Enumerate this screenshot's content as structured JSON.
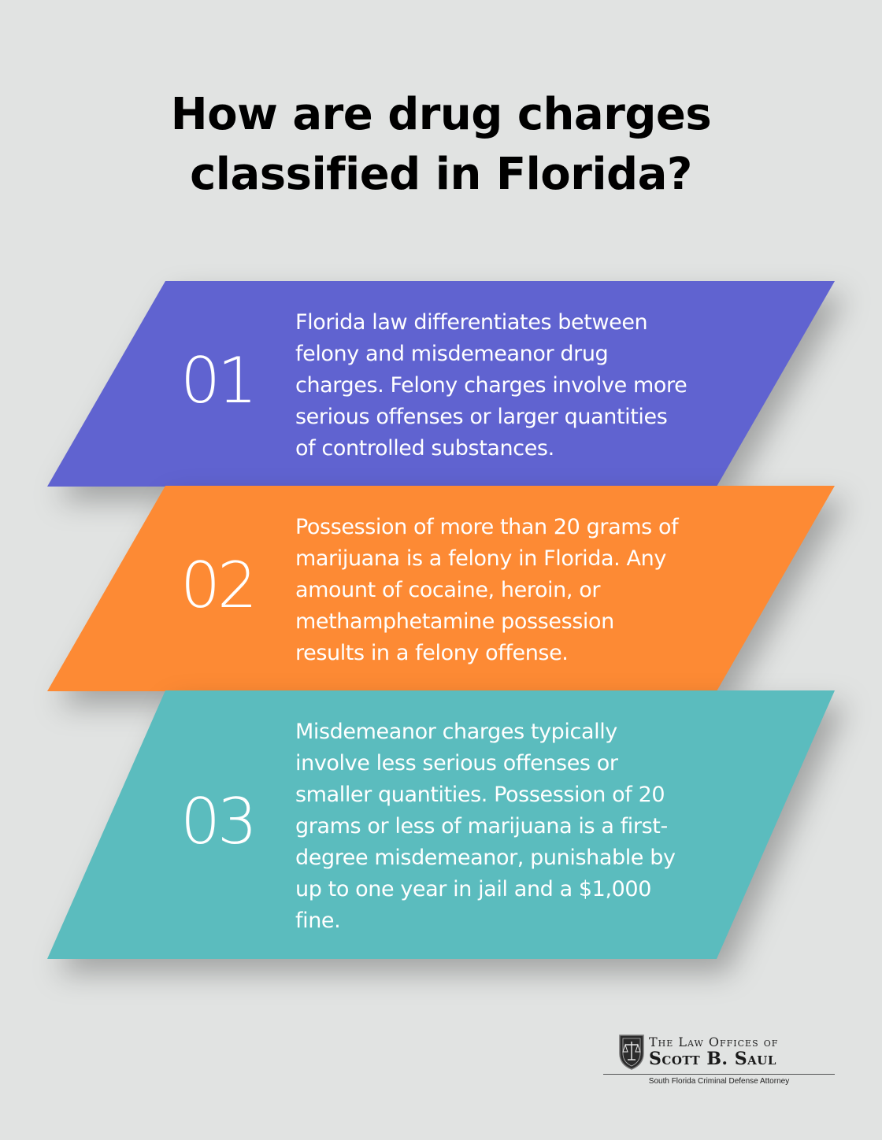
{
  "title": {
    "line1": "How are drug charges",
    "line2": "classified in Florida?"
  },
  "steps": [
    {
      "number": "01",
      "color": "#6063d0",
      "lines": [
        "Florida law differentiates between",
        "felony and misdemeanor drug",
        "charges. Felony charges involve more",
        "serious offenses or larger quantities",
        "of controlled substances."
      ]
    },
    {
      "number": "02",
      "color": "#fd8a34",
      "lines": [
        "Possession of more than 20 grams of",
        "marijuana is a felony in Florida. Any",
        "amount of cocaine, heroin, or",
        "methamphetamine possession",
        "results in a felony offense."
      ]
    },
    {
      "number": "03",
      "color": "#5bbcbe",
      "lines": [
        "Misdemeanor charges typically",
        "involve less serious offenses or",
        "smaller quantities. Possession of 20",
        "grams or less of marijuana is a first-",
        "degree misdemeanor, punishable by",
        "up to one year in jail and a $1,000",
        "fine."
      ]
    }
  ],
  "logo": {
    "line1": "The Law Offices of",
    "line2": "Scott B. Saul",
    "tagline": "South Florida Criminal Defense Attorney",
    "icon": "scales-of-justice-shield-icon"
  }
}
